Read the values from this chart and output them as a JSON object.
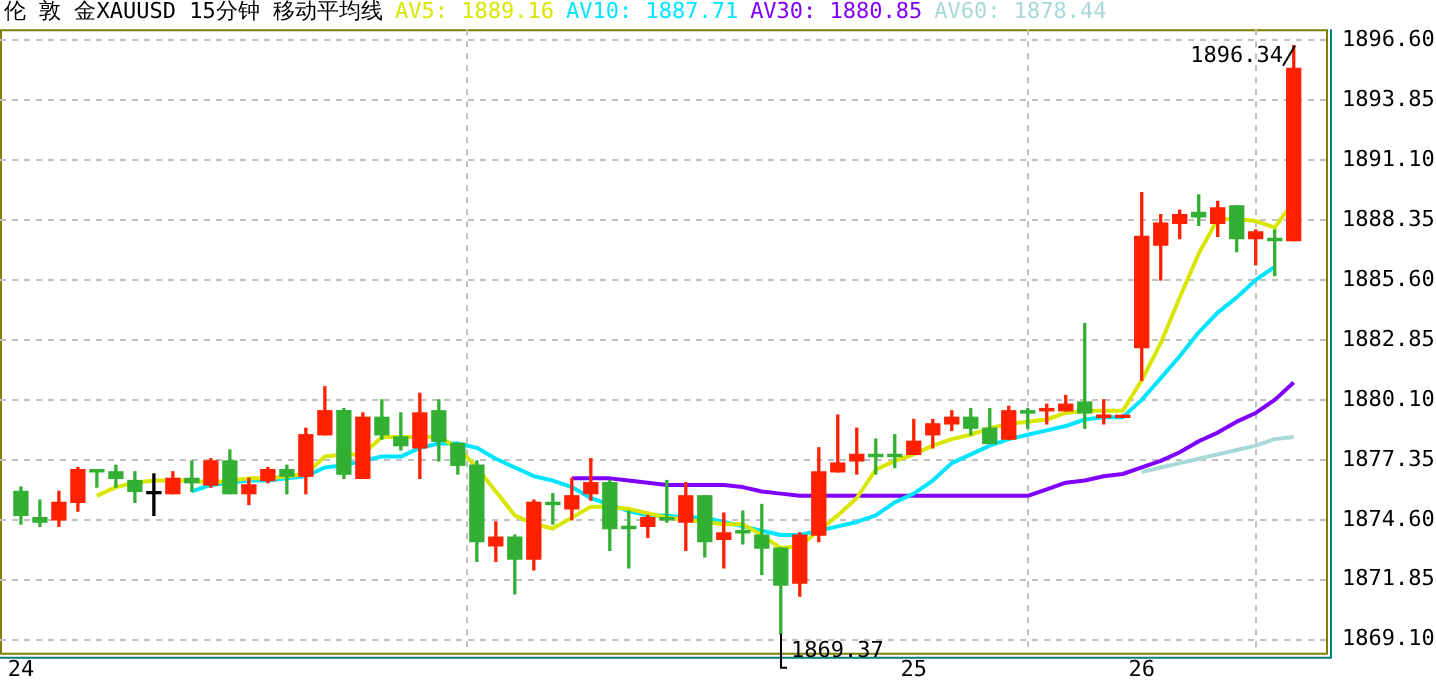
{
  "chart_data": {
    "type": "candlestick",
    "title": "伦 敦 金XAUUSD 15分钟 移动平均线",
    "categories": [
      "24",
      null,
      null,
      null,
      null,
      null,
      null,
      null,
      null,
      null,
      null,
      null,
      null,
      null,
      null,
      null,
      null,
      null,
      null,
      null,
      null,
      null,
      null,
      null,
      null,
      null,
      null,
      null,
      null,
      null,
      null,
      null,
      null,
      null,
      null,
      null,
      null,
      null,
      null,
      null,
      null,
      null,
      null,
      null,
      null,
      null,
      null,
      "25",
      null,
      null,
      null,
      null,
      null,
      null,
      null,
      null,
      null,
      null,
      null,
      "26",
      null,
      null,
      null,
      null,
      null,
      null,
      null,
      null
    ],
    "ohlc": [
      [
        1875.9,
        1876.1,
        1874.4,
        1874.8
      ],
      [
        1874.7,
        1875.5,
        1874.3,
        1874.5
      ],
      [
        1874.6,
        1875.9,
        1874.3,
        1875.4
      ],
      [
        1875.4,
        1877.0,
        1875.0,
        1876.9
      ],
      [
        1876.9,
        1876.9,
        1876.1,
        1876.8
      ],
      [
        1876.8,
        1877.1,
        1876.1,
        1876.5
      ],
      [
        1876.4,
        1876.8,
        1875.4,
        1875.9
      ],
      [
        1875.8,
        1876.7,
        1874.8,
        1875.8
      ],
      [
        1875.8,
        1876.8,
        1875.8,
        1876.5
      ],
      [
        1876.5,
        1877.3,
        1875.9,
        1876.3
      ],
      [
        1876.2,
        1877.4,
        1876.1,
        1877.3
      ],
      [
        1877.3,
        1877.8,
        1875.8,
        1875.8
      ],
      [
        1875.8,
        1876.5,
        1875.3,
        1876.2
      ],
      [
        1876.4,
        1877.0,
        1876.3,
        1876.9
      ],
      [
        1876.9,
        1877.1,
        1875.8,
        1876.6
      ],
      [
        1876.6,
        1878.8,
        1875.8,
        1878.5
      ],
      [
        1878.5,
        1880.7,
        1878.5,
        1879.6
      ],
      [
        1879.6,
        1879.7,
        1876.5,
        1876.7
      ],
      [
        1876.5,
        1879.5,
        1876.5,
        1879.3
      ],
      [
        1879.3,
        1880.1,
        1878.3,
        1878.5
      ],
      [
        1878.4,
        1879.5,
        1877.8,
        1878.0
      ],
      [
        1877.9,
        1880.4,
        1876.5,
        1879.5
      ],
      [
        1879.6,
        1880.1,
        1877.3,
        1878.2
      ],
      [
        1878.1,
        1878.1,
        1876.7,
        1877.1
      ],
      [
        1877.1,
        1877.3,
        1872.7,
        1873.6
      ],
      [
        1873.4,
        1874.5,
        1872.7,
        1873.8
      ],
      [
        1873.8,
        1873.9,
        1871.2,
        1872.8
      ],
      [
        1872.8,
        1875.5,
        1872.3,
        1875.4
      ],
      [
        1875.4,
        1875.8,
        1874.4,
        1875.3
      ],
      [
        1875.1,
        1876.5,
        1874.6,
        1875.7
      ],
      [
        1875.8,
        1877.4,
        1875.5,
        1876.3
      ],
      [
        1876.3,
        1876.4,
        1873.2,
        1874.2
      ],
      [
        1874.3,
        1875.0,
        1872.4,
        1874.2
      ],
      [
        1874.3,
        1874.8,
        1873.8,
        1874.7
      ],
      [
        1874.7,
        1876.4,
        1874.5,
        1874.6
      ],
      [
        1874.5,
        1876.3,
        1873.2,
        1875.7
      ],
      [
        1875.7,
        1875.7,
        1872.9,
        1873.6
      ],
      [
        1873.7,
        1874.9,
        1872.4,
        1874.0
      ],
      [
        1874.1,
        1875.0,
        1873.5,
        1874.0
      ],
      [
        1873.9,
        1875.3,
        1872.1,
        1873.3
      ],
      [
        1873.3,
        1873.3,
        1869.37,
        1871.6
      ],
      [
        1871.7,
        1874.0,
        1871.1,
        1873.9
      ],
      [
        1873.9,
        1877.9,
        1873.6,
        1876.8
      ],
      [
        1876.8,
        1879.4,
        1876.8,
        1877.2
      ],
      [
        1877.3,
        1878.8,
        1876.7,
        1877.6
      ],
      [
        1877.6,
        1878.3,
        1876.7,
        1877.5
      ],
      [
        1877.6,
        1878.5,
        1877.0,
        1877.5
      ],
      [
        1877.6,
        1879.2,
        1877.6,
        1878.2
      ],
      [
        1878.5,
        1879.2,
        1877.9,
        1879.0
      ],
      [
        1879.0,
        1879.6,
        1878.7,
        1879.3
      ],
      [
        1879.3,
        1879.7,
        1878.5,
        1878.8
      ],
      [
        1878.8,
        1879.7,
        1878.1,
        1878.1
      ],
      [
        1878.3,
        1879.8,
        1878.3,
        1879.6
      ],
      [
        1879.6,
        1879.7,
        1878.8,
        1879.5
      ],
      [
        1879.6,
        1879.9,
        1879.0,
        1879.7
      ],
      [
        1879.6,
        1880.3,
        1879.6,
        1879.9
      ],
      [
        1880.0,
        1883.6,
        1878.8,
        1879.5
      ],
      [
        1879.3,
        1880.1,
        1879.0,
        1879.4
      ],
      [
        1879.3,
        1879.3,
        1879.3,
        1879.3
      ],
      [
        1882.5,
        1889.6,
        1881.0,
        1887.6
      ],
      [
        1887.2,
        1888.6,
        1885.6,
        1888.2
      ],
      [
        1888.2,
        1888.8,
        1887.5,
        1888.6
      ],
      [
        1888.7,
        1889.5,
        1888.1,
        1888.5
      ],
      [
        1888.2,
        1889.2,
        1887.6,
        1888.9
      ],
      [
        1889.0,
        1889.0,
        1886.9,
        1887.5
      ],
      [
        1887.5,
        1887.9,
        1886.3,
        1887.8
      ],
      [
        1887.5,
        1887.9,
        1885.8,
        1887.4
      ],
      [
        1887.4,
        1896.34,
        1887.4,
        1895.3
      ]
    ],
    "colors": [
      "#33b033",
      "#33b033",
      "#ff2000",
      "#ff2000",
      "#33b033",
      "#33b033",
      "#33b033",
      "#000000",
      "#ff2000",
      "#33b033",
      "#ff2000",
      "#33b033",
      "#ff2000",
      "#ff2000",
      "#33b033",
      "#ff2000",
      "#ff2000",
      "#33b033",
      "#ff2000",
      "#33b033",
      "#33b033",
      "#ff2000",
      "#33b033",
      "#33b033",
      "#33b033",
      "#ff2000",
      "#33b033",
      "#ff2000",
      "#33b033",
      "#ff2000",
      "#ff2000",
      "#33b033",
      "#33b033",
      "#ff2000",
      "#33b033",
      "#ff2000",
      "#33b033",
      "#ff2000",
      "#33b033",
      "#33b033",
      "#33b033",
      "#ff2000",
      "#ff2000",
      "#ff2000",
      "#ff2000",
      "#33b033",
      "#33b033",
      "#ff2000",
      "#ff2000",
      "#ff2000",
      "#33b033",
      "#33b033",
      "#ff2000",
      "#33b033",
      "#ff2000",
      "#ff2000",
      "#33b033",
      "#ff2000",
      "#ff2000",
      "#ff2000",
      "#ff2000",
      "#ff2000",
      "#33b033",
      "#ff2000",
      "#33b033",
      "#ff2000",
      "#33b033",
      "#ff2000"
    ],
    "series": [
      {
        "name": "AV5: 1889.16",
        "type": "line",
        "color": "#d8e600",
        "values": [
          null,
          null,
          null,
          null,
          1875.7,
          1876.1,
          1876.3,
          1876.4,
          1876.4,
          1876.4,
          1876.3,
          1876.4,
          1876.5,
          1876.5,
          1876.6,
          1876.7,
          1877.5,
          1877.6,
          1877.6,
          1878.4,
          1878.4,
          1878.4,
          1878.4,
          1877.9,
          1877.0,
          1875.9,
          1874.8,
          1874.4,
          1874.2,
          1874.7,
          1875.2,
          1875.2,
          1875.1,
          1874.9,
          1874.7,
          1874.6,
          1874.5,
          1874.4,
          1874.4,
          1873.9,
          1873.3,
          1873.4,
          1874.1,
          1874.8,
          1875.6,
          1876.9,
          1877.3,
          1877.6,
          1878.0,
          1878.3,
          1878.5,
          1878.8,
          1879.0,
          1879.1,
          1879.2,
          1879.5,
          1879.6,
          1879.6,
          1879.6,
          1881.0,
          1882.7,
          1884.8,
          1886.8,
          1888.4,
          1888.4,
          1888.3,
          1888.0,
          1889.2
        ]
      },
      {
        "name": "AV10: 1887.71",
        "type": "line",
        "color": "#00e5ff",
        "values": [
          null,
          null,
          null,
          null,
          null,
          null,
          null,
          null,
          null,
          1875.9,
          1876.2,
          1876.3,
          1876.4,
          1876.4,
          1876.5,
          1876.6,
          1877.0,
          1877.1,
          1877.3,
          1877.5,
          1877.5,
          1877.9,
          1878.1,
          1878.1,
          1877.9,
          1877.4,
          1877.0,
          1876.6,
          1876.4,
          1876.1,
          1875.6,
          1875.3,
          1875.0,
          1874.8,
          1874.8,
          1874.7,
          1874.7,
          1874.5,
          1874.3,
          1874.1,
          1873.9,
          1873.9,
          1874.1,
          1874.3,
          1874.5,
          1874.8,
          1875.4,
          1875.8,
          1876.4,
          1877.2,
          1877.6,
          1878.0,
          1878.3,
          1878.5,
          1878.7,
          1878.9,
          1879.2,
          1879.3,
          1879.3,
          1880.1,
          1881.1,
          1882.1,
          1883.2,
          1884.1,
          1884.8,
          1885.6,
          1886.2,
          null
        ]
      },
      {
        "name": "AV30: 1880.85",
        "type": "line",
        "color": "#8000ff",
        "values": [
          null,
          null,
          null,
          null,
          null,
          null,
          null,
          null,
          null,
          null,
          null,
          null,
          null,
          null,
          null,
          null,
          null,
          null,
          null,
          null,
          null,
          null,
          null,
          null,
          null,
          null,
          null,
          null,
          null,
          1876.5,
          1876.5,
          1876.5,
          1876.4,
          1876.3,
          1876.2,
          1876.2,
          1876.2,
          1876.2,
          1876.1,
          1875.9,
          1875.8,
          1875.7,
          1875.7,
          1875.7,
          1875.7,
          1875.7,
          1875.7,
          1875.7,
          1875.7,
          1875.7,
          1875.7,
          1875.7,
          1875.7,
          1875.7,
          1876.0,
          1876.3,
          1876.4,
          1876.6,
          1876.7,
          1877.0,
          1877.3,
          1877.7,
          1878.2,
          1878.6,
          1879.1,
          1879.5,
          1880.1,
          1880.9
        ]
      },
      {
        "name": "AV60: 1878.44",
        "type": "line",
        "color": "#a8d8d8",
        "values": [
          null,
          null,
          null,
          null,
          null,
          null,
          null,
          null,
          null,
          null,
          null,
          null,
          null,
          null,
          null,
          null,
          null,
          null,
          null,
          null,
          null,
          null,
          null,
          null,
          null,
          null,
          null,
          null,
          null,
          null,
          null,
          null,
          null,
          null,
          null,
          null,
          null,
          null,
          null,
          null,
          null,
          null,
          null,
          null,
          null,
          null,
          null,
          null,
          null,
          null,
          null,
          null,
          null,
          null,
          null,
          null,
          null,
          null,
          null,
          1876.8,
          1877.0,
          1877.2,
          1877.4,
          1877.6,
          1877.8,
          1878.0,
          1878.3,
          1878.4
        ]
      }
    ],
    "ylim": [
      1868.5,
      1897.1
    ],
    "yticks": [
      {
        "value": 1869.1,
        "label": "1869.10"
      },
      {
        "value": 1871.85,
        "label": "1871.85"
      },
      {
        "value": 1874.6,
        "label": "1874.60"
      },
      {
        "value": 1877.35,
        "label": "1877.35"
      },
      {
        "value": 1880.1,
        "label": "1880.10"
      },
      {
        "value": 1882.85,
        "label": "1882.85"
      },
      {
        "value": 1885.6,
        "label": "1885.60"
      },
      {
        "value": 1888.35,
        "label": "1888.35"
      },
      {
        "value": 1891.1,
        "label": "1891.10"
      },
      {
        "value": 1893.85,
        "label": "1893.85"
      },
      {
        "value": 1896.6,
        "label": "1896.60"
      }
    ],
    "grid": true,
    "legend": "top",
    "marker": "none",
    "annotations": [
      "1869.37",
      "1896.34"
    ]
  }
}
